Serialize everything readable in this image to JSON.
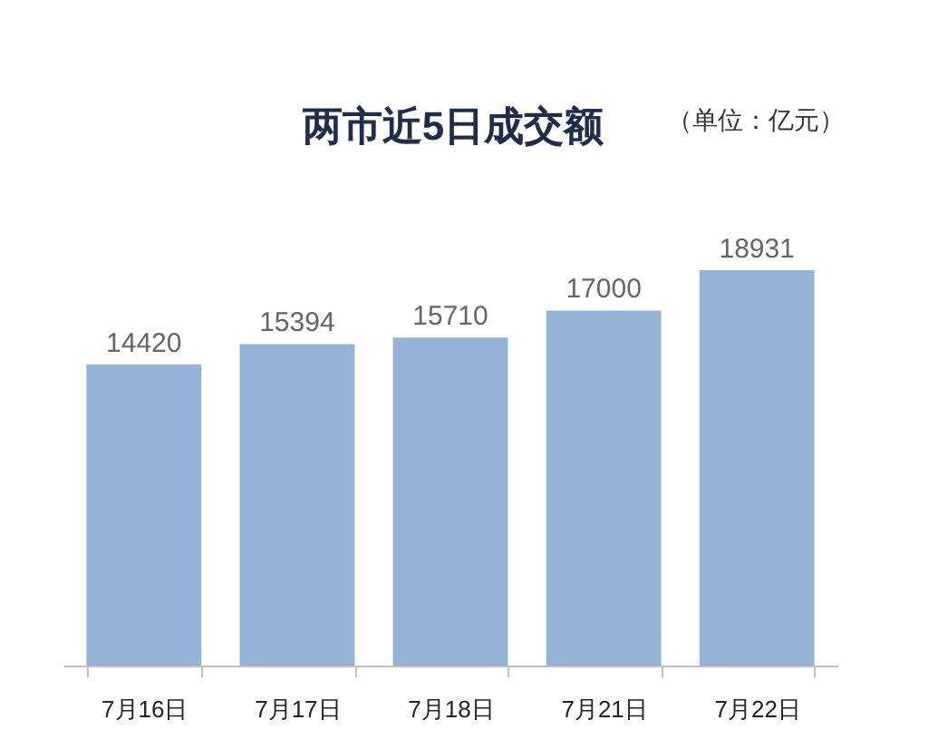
{
  "chart_data": {
    "type": "bar",
    "title": "两市近5日成交额",
    "subtitle": "（单位：亿元）",
    "categories": [
      "7月16日",
      "7月17日",
      "7月18日",
      "7月21日",
      "7月22日"
    ],
    "values": [
      14420,
      15394,
      15710,
      17000,
      18931
    ],
    "color": "#95b3d7",
    "data_labels": true
  }
}
